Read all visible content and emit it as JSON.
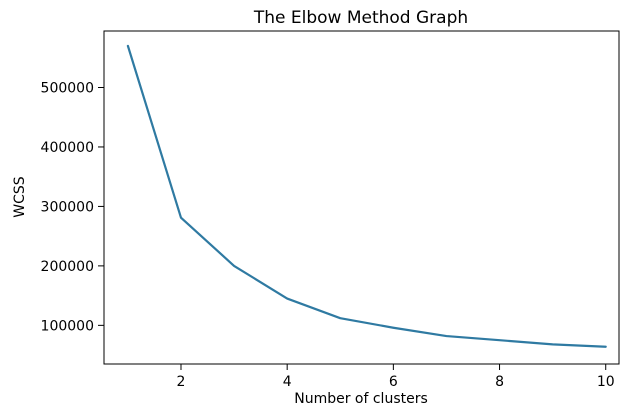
{
  "chart_data": {
    "type": "line",
    "title": "The Elbow Method Graph",
    "xlabel": "Number of clusters",
    "ylabel": "WCSS",
    "x": [
      1,
      2,
      3,
      4,
      5,
      6,
      7,
      8,
      9,
      10
    ],
    "series": [
      {
        "values": [
          570000,
          281000,
          200000,
          145000,
          112000,
          96000,
          82000,
          75000,
          68000,
          64000
        ],
        "color": "#2f7aa2"
      }
    ],
    "xlim": [
      0.55,
      10.25
    ],
    "ylim": [
      35000,
      595000
    ],
    "xticks": [
      2,
      4,
      6,
      8,
      10
    ],
    "yticks": [
      100000,
      200000,
      300000,
      400000,
      500000
    ],
    "grid": false
  }
}
